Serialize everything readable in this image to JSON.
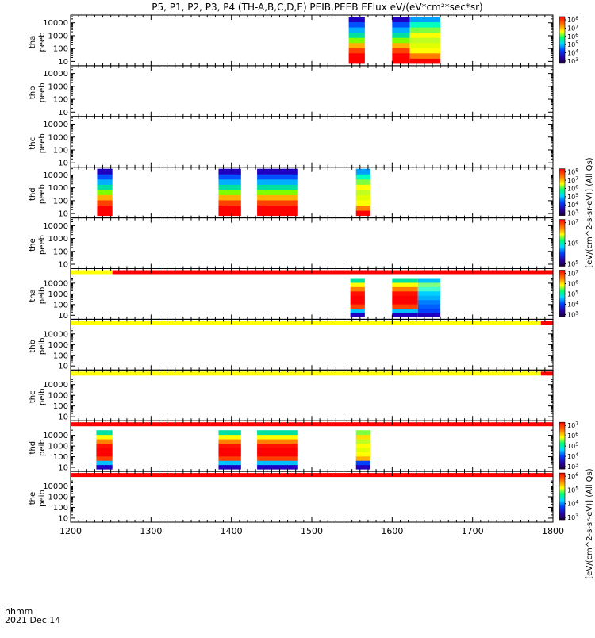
{
  "title": "P5, P1, P2, P3, P4 (TH-A,B,C,D,E) PEIB,PEEB EFlux eV/(eV*cm²*sec*sr)",
  "footer": {
    "format_label": "hhmm",
    "date_label": "2021 Dec 14"
  },
  "colorbar_units": {
    "electron": "[eV/(cm^2-s-sr-eV)] (All Qs)",
    "ion": "[eV/(cm^2-s-sr-eV)] (All Qs)"
  },
  "chart_data": {
    "type": "heatmap",
    "title": "P5, P1, P2, P3, P4 (TH-A,B,C,D,E) PEIB,PEEB EFlux eV/(eV*cm²*sec*sr)",
    "x_range": [
      1200,
      1800
    ],
    "x_ticks": [
      "1200",
      "1300",
      "1400",
      "1500",
      "1600",
      "1700",
      "1800"
    ],
    "y_scale": "log",
    "y_range": [
      7,
      30000
    ],
    "y_ticks": [
      "10",
      "100",
      "1000",
      "10000"
    ],
    "panels": [
      {
        "label1": "tha",
        "label2": "peeb",
        "cbar": [
          "10^8",
          "10^7",
          "10^6",
          "10^5",
          "10^4",
          "10^3"
        ],
        "bar": null,
        "intervals": [
          {
            "start": 1546,
            "end": 1566,
            "profile": "electron"
          },
          {
            "start": 1600,
            "end": 1622,
            "profile": "electron"
          },
          {
            "start": 1622,
            "end": 1660,
            "profile": "hot"
          }
        ]
      },
      {
        "label1": "thb",
        "label2": "peeb",
        "cbar": null,
        "bar": null,
        "intervals": []
      },
      {
        "label1": "thc",
        "label2": "peeb",
        "cbar": null,
        "bar": null,
        "intervals": []
      },
      {
        "label1": "thd",
        "label2": "peeb",
        "cbar": [
          "10^8",
          "10^7",
          "10^6",
          "10^5",
          "10^4",
          "10^3"
        ],
        "bar": null,
        "intervals": [
          {
            "start": 1233,
            "end": 1252,
            "profile": "electron"
          },
          {
            "start": 1384,
            "end": 1412,
            "profile": "electron"
          },
          {
            "start": 1432,
            "end": 1483,
            "profile": "electron"
          },
          {
            "start": 1555,
            "end": 1573,
            "profile": "hot"
          }
        ]
      },
      {
        "label1": "the",
        "label2": "peeb",
        "cbar": [
          "10^7",
          "10^6",
          "10^5"
        ],
        "bar": null,
        "intervals": []
      },
      {
        "label1": "tha",
        "label2": "peib",
        "cbar": [
          "10^7",
          "10^6",
          "10^5",
          "10^4",
          "10^3"
        ],
        "bar": [
          {
            "start": 1200,
            "end": 1252,
            "color": "#ffff00"
          },
          {
            "start": 1252,
            "end": 1800,
            "color": "#ff0000"
          }
        ],
        "intervals": [
          {
            "start": 1548,
            "end": 1566,
            "profile": "ion"
          },
          {
            "start": 1600,
            "end": 1632,
            "profile": "ion"
          },
          {
            "start": 1632,
            "end": 1660,
            "profile": "ionblue"
          }
        ]
      },
      {
        "label1": "thb",
        "label2": "peib",
        "cbar": null,
        "bar": [
          {
            "start": 1200,
            "end": 1785,
            "color": "#ffff00"
          },
          {
            "start": 1785,
            "end": 1800,
            "color": "#ff0000"
          }
        ],
        "intervals": []
      },
      {
        "label1": "thc",
        "label2": "peib",
        "cbar": null,
        "bar": [
          {
            "start": 1200,
            "end": 1785,
            "color": "#ffff00"
          },
          {
            "start": 1785,
            "end": 1800,
            "color": "#ff0000"
          }
        ],
        "intervals": []
      },
      {
        "label1": "thd",
        "label2": "peib",
        "cbar": [
          "10^7",
          "10^6",
          "10^5",
          "10^4",
          "10^3"
        ],
        "bar": [
          {
            "start": 1200,
            "end": 1800,
            "color": "#ff0000"
          }
        ],
        "intervals": [
          {
            "start": 1232,
            "end": 1252,
            "profile": "ion"
          },
          {
            "start": 1384,
            "end": 1412,
            "profile": "ion"
          },
          {
            "start": 1432,
            "end": 1483,
            "profile": "ion"
          },
          {
            "start": 1555,
            "end": 1573,
            "profile": "ionhot"
          }
        ]
      },
      {
        "label1": "the",
        "label2": "peib",
        "cbar": [
          "10^6",
          "10^5",
          "10^4",
          "10^3"
        ],
        "bar": [
          {
            "start": 1200,
            "end": 1800,
            "color": "#ff0000"
          }
        ],
        "intervals": []
      }
    ]
  }
}
